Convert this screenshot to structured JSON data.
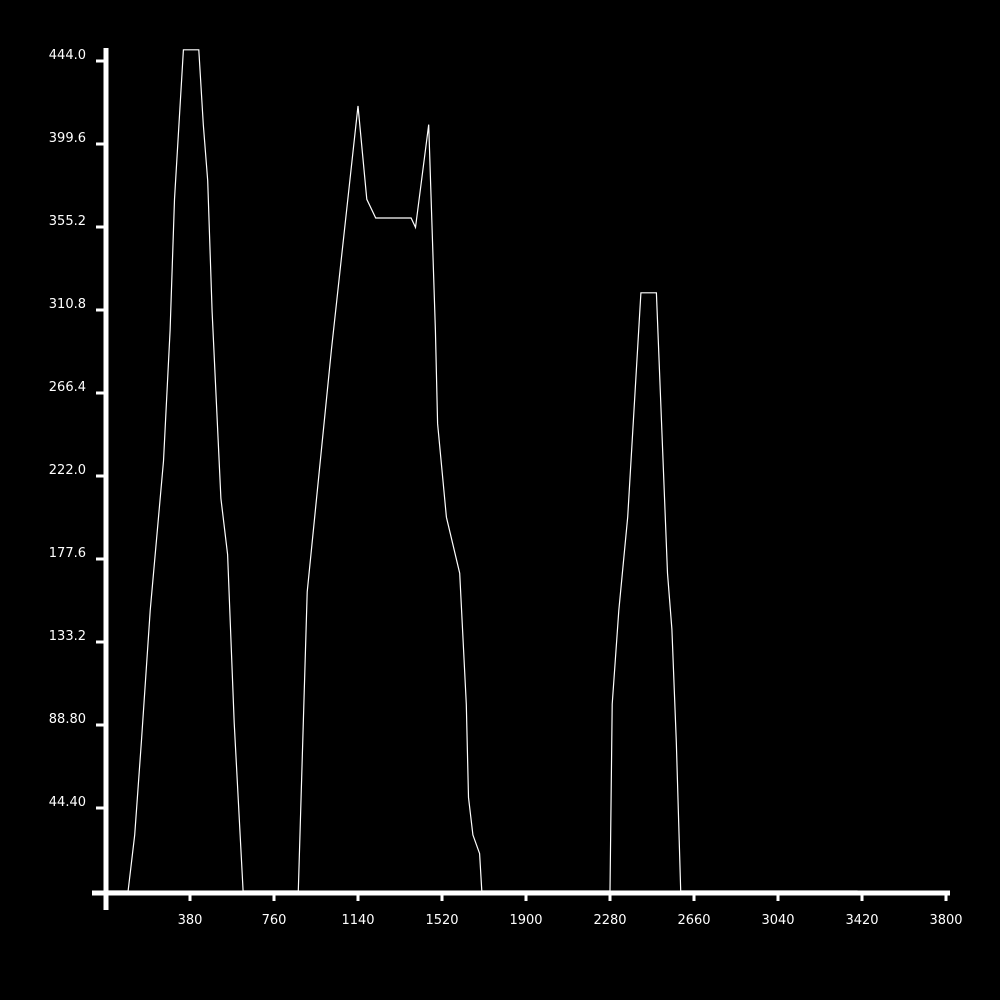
{
  "chart_data": {
    "type": "line",
    "title": "",
    "xlabel": "",
    "ylabel": "",
    "xlim": [
      0,
      3800
    ],
    "ylim": [
      0,
      444.0
    ],
    "x_ticks": [
      380,
      760,
      1140,
      1520,
      1900,
      2280,
      2660,
      3040,
      3420,
      3800
    ],
    "x_tick_labels": [
      "380",
      "760",
      "1140",
      "1520",
      "1900",
      "2280",
      "2660",
      "3040",
      "3420",
      "3800"
    ],
    "y_ticks": [
      44.4,
      88.8,
      133.2,
      177.6,
      222.0,
      266.4,
      310.8,
      355.2,
      399.6,
      444.0
    ],
    "y_tick_labels": [
      "44.40",
      "88.80",
      "133.2",
      "177.6",
      "222.0",
      "266.4",
      "310.8",
      "355.2",
      "399.6",
      "444.0"
    ],
    "grid": false,
    "colors": {
      "background": "#000000",
      "foreground": "#ffffff"
    },
    "series": [
      {
        "x": [
          0,
          100,
          130,
          160,
          200,
          260,
          290,
          310,
          350,
          390,
          420,
          440,
          460,
          480,
          520,
          550,
          580,
          620,
          640,
          660,
          670,
          680,
          710,
          810,
          870,
          910,
          1020,
          1140,
          1180,
          1220,
          1380,
          1400,
          1460,
          1490,
          1500,
          1540,
          1600,
          1630,
          1640,
          1660,
          1690,
          1700,
          1710,
          1740,
          1790,
          1820,
          1860,
          2250,
          2280,
          2290,
          2320,
          2360,
          2420,
          2470,
          2490,
          2540,
          2560,
          2580,
          2600,
          2620,
          2650,
          2680,
          2700,
          2720,
          2750,
          2800,
          2820,
          2850,
          2870,
          2900,
          2930,
          3000,
          3020,
          3050,
          3070,
          3080,
          3110,
          3120,
          3150,
          3170,
          3190,
          3230,
          3280,
          3340,
          3400
        ],
        "values": [
          0,
          0,
          30,
          80,
          150,
          230,
          300,
          370,
          450,
          450,
          450,
          410,
          380,
          310,
          210,
          180,
          90,
          0,
          0,
          0,
          0,
          0,
          0,
          0,
          0,
          160,
          290,
          420,
          370,
          360,
          360,
          355,
          410,
          300,
          250,
          200,
          170,
          100,
          50,
          30,
          20,
          0,
          0,
          0,
          0,
          0,
          0,
          0,
          0,
          100,
          150,
          200,
          320,
          320,
          320,
          170,
          140,
          80,
          0,
          0,
          0,
          0,
          0,
          0,
          0,
          0,
          0,
          0,
          0,
          0,
          0,
          0,
          0,
          0,
          0,
          0,
          0,
          0,
          0,
          0,
          0,
          0,
          0,
          0,
          0
        ]
      }
    ]
  }
}
